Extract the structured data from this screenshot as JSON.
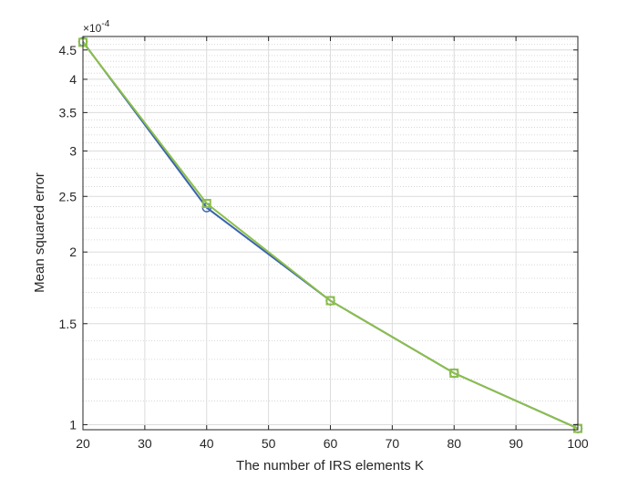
{
  "chart_data": {
    "type": "line",
    "xlabel": "The number of IRS elements K",
    "ylabel": "Mean squared error",
    "y_scale": "log",
    "y_exponent_label": "×10",
    "y_exponent_power": "-4",
    "xlim": [
      20,
      100
    ],
    "ylim": [
      0.98,
      4.75
    ],
    "grid": true,
    "minor_grid": true,
    "x_ticks": [
      20,
      30,
      40,
      50,
      60,
      70,
      80,
      90,
      100
    ],
    "x_tick_labels": [
      "20",
      "30",
      "40",
      "50",
      "60",
      "70",
      "80",
      "90",
      "100"
    ],
    "y_ticks": [
      1,
      1.5,
      2,
      2.5,
      3,
      3.5,
      4,
      4.5
    ],
    "y_tick_labels": [
      "1",
      "1.5",
      "2",
      "2.5",
      "3",
      "3.5",
      "4",
      "4.5"
    ],
    "x": [
      20,
      40,
      60,
      80,
      100
    ],
    "series": [
      {
        "values": [
          4.65,
          2.39,
          1.645,
          1.23,
          0.985
        ],
        "color": "#3a64b0",
        "marker": "circle"
      },
      {
        "values": [
          4.64,
          2.43,
          1.645,
          1.23,
          0.985
        ],
        "color": "#8cbf4a",
        "marker": "square"
      }
    ]
  }
}
